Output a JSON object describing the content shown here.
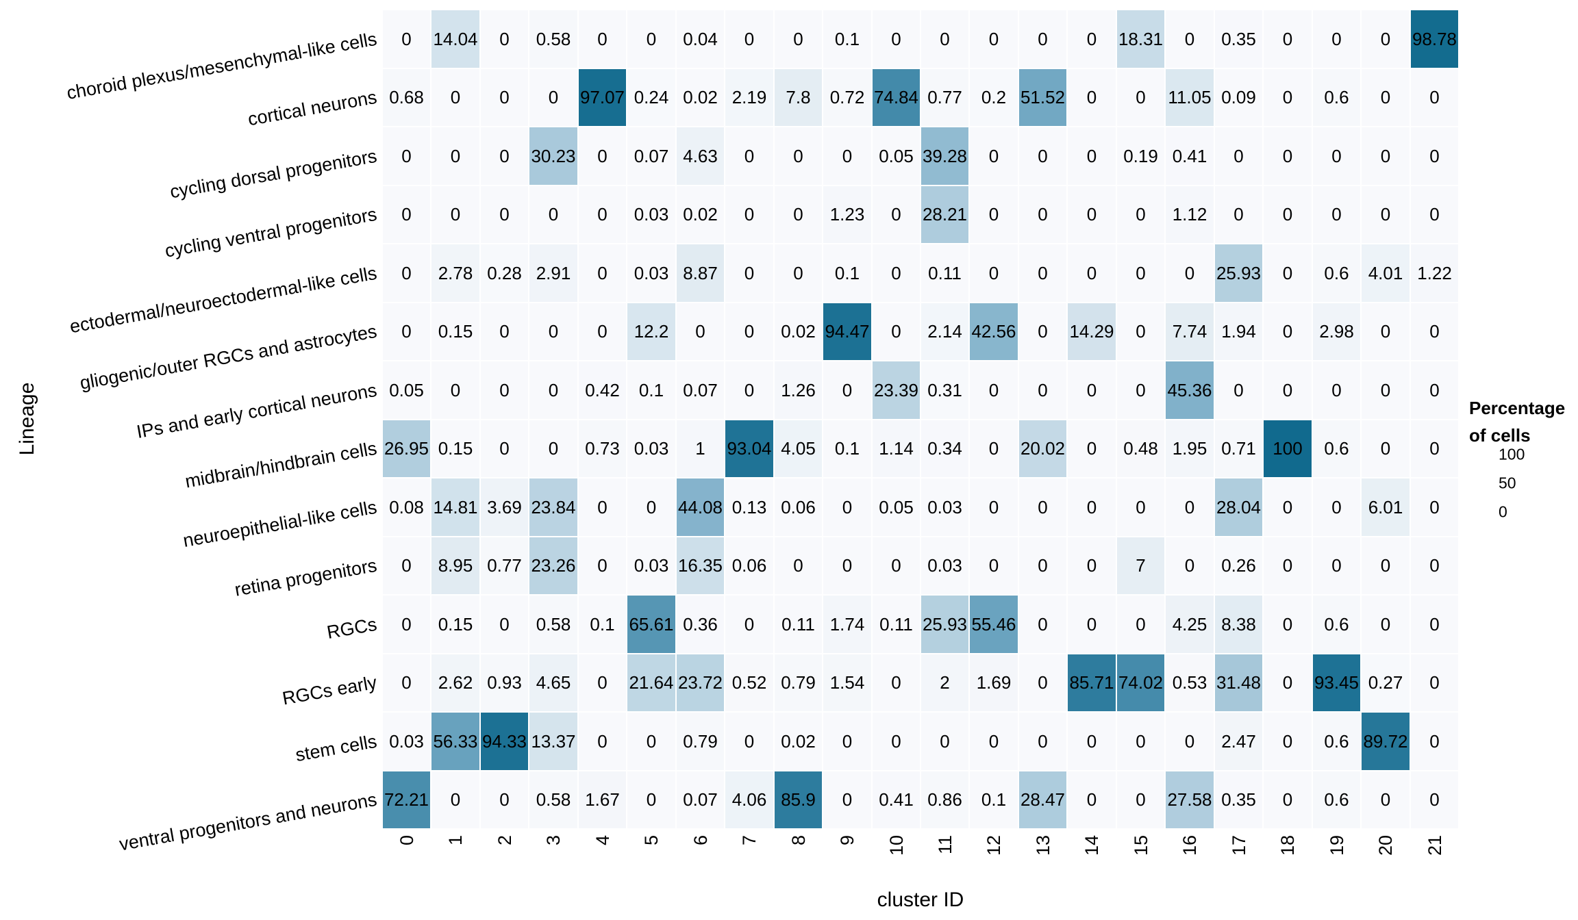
{
  "chart_data": {
    "type": "heatmap",
    "xlabel": "cluster ID",
    "ylabel": "Lineage",
    "columns": [
      "0",
      "1",
      "2",
      "3",
      "4",
      "5",
      "6",
      "7",
      "8",
      "9",
      "10",
      "11",
      "12",
      "13",
      "14",
      "15",
      "16",
      "17",
      "18",
      "19",
      "20",
      "21"
    ],
    "rows": [
      "choroid plexus/mesenchymal-like cells",
      "cortical neurons",
      "cycling dorsal progenitors",
      "cycling ventral progenitors",
      "ectodermal/neuroectodermal-like cells",
      "gliogenic/outer RGCs and astrocytes",
      "IPs and early cortical neurons",
      "midbrain/hindbrain cells",
      "neuroepithelial-like cells",
      "retina progenitors",
      "RGCs",
      "RGCs early",
      "stem cells",
      "ventral progenitors and neurons"
    ],
    "values": [
      [
        0,
        14.04,
        0,
        0.58,
        0,
        0,
        0.04,
        0,
        0,
        0.1,
        0,
        0,
        0,
        0,
        0,
        18.31,
        0,
        0.35,
        0,
        0,
        0,
        98.78
      ],
      [
        0.68,
        0,
        0,
        0,
        97.07,
        0.24,
        0.02,
        2.19,
        7.8,
        0.72,
        74.84,
        0.77,
        0.2,
        51.52,
        0,
        0,
        11.05,
        0.09,
        0,
        0.6,
        0,
        0
      ],
      [
        0,
        0,
        0,
        30.23,
        0,
        0.07,
        4.63,
        0,
        0,
        0,
        0.05,
        39.28,
        0,
        0,
        0,
        0.19,
        0.41,
        0,
        0,
        0,
        0,
        0
      ],
      [
        0,
        0,
        0,
        0,
        0,
        0.03,
        0.02,
        0,
        0,
        1.23,
        0,
        28.21,
        0,
        0,
        0,
        0,
        1.12,
        0,
        0,
        0,
        0,
        0
      ],
      [
        0,
        2.78,
        0.28,
        2.91,
        0,
        0.03,
        8.87,
        0,
        0,
        0.1,
        0,
        0.11,
        0,
        0,
        0,
        0,
        0,
        25.93,
        0,
        0.6,
        4.01,
        1.22
      ],
      [
        0,
        0.15,
        0,
        0,
        0,
        12.2,
        0,
        0,
        0.02,
        94.47,
        0,
        2.14,
        42.56,
        0,
        14.29,
        0,
        7.74,
        1.94,
        0,
        2.98,
        0,
        0
      ],
      [
        0.05,
        0,
        0,
        0,
        0.42,
        0.1,
        0.07,
        0,
        1.26,
        0,
        23.39,
        0.31,
        0,
        0,
        0,
        0,
        45.36,
        0,
        0,
        0,
        0,
        0
      ],
      [
        26.95,
        0.15,
        0,
        0,
        0.73,
        0.03,
        1,
        93.04,
        4.05,
        0.1,
        1.14,
        0.34,
        0,
        20.02,
        0,
        0.48,
        1.95,
        0.71,
        100,
        0.6,
        0,
        0
      ],
      [
        0.08,
        14.81,
        3.69,
        23.84,
        0,
        0,
        44.08,
        0.13,
        0.06,
        0,
        0.05,
        0.03,
        0,
        0,
        0,
        0,
        0,
        28.04,
        0,
        0,
        6.01,
        0
      ],
      [
        0,
        8.95,
        0.77,
        23.26,
        0,
        0.03,
        16.35,
        0.06,
        0,
        0,
        0,
        0.03,
        0,
        0,
        0,
        7,
        0,
        0.26,
        0,
        0,
        0,
        0
      ],
      [
        0,
        0.15,
        0,
        0.58,
        0.1,
        65.61,
        0.36,
        0,
        0.11,
        1.74,
        0.11,
        25.93,
        55.46,
        0,
        0,
        0,
        4.25,
        8.38,
        0,
        0.6,
        0,
        0
      ],
      [
        0,
        2.62,
        0.93,
        4.65,
        0,
        21.64,
        23.72,
        0.52,
        0.79,
        1.54,
        0,
        2,
        1.69,
        0,
        85.71,
        74.02,
        0.53,
        31.48,
        0,
        93.45,
        0.27,
        0
      ],
      [
        0.03,
        56.33,
        94.33,
        13.37,
        0,
        0,
        0.79,
        0,
        0.02,
        0,
        0,
        0,
        0,
        0,
        0,
        0,
        0,
        2.47,
        0,
        0.6,
        89.72,
        0
      ],
      [
        72.21,
        0,
        0,
        0.58,
        1.67,
        0,
        0.07,
        4.06,
        85.9,
        0,
        0.41,
        0.86,
        0.1,
        28.47,
        0,
        0,
        27.58,
        0.35,
        0,
        0.6,
        0,
        0
      ]
    ],
    "value_range": [
      0,
      100
    ],
    "grid": false,
    "legend": {
      "position": "right",
      "title_line1": "Percentage",
      "title_line2": "of cells",
      "ticks": [
        100,
        50,
        0
      ]
    },
    "colors": {
      "low": "#f8f9fc",
      "mid": "#75aac5",
      "high": "#116a8e",
      "gap": "#ffffff",
      "text": "#000000"
    }
  }
}
